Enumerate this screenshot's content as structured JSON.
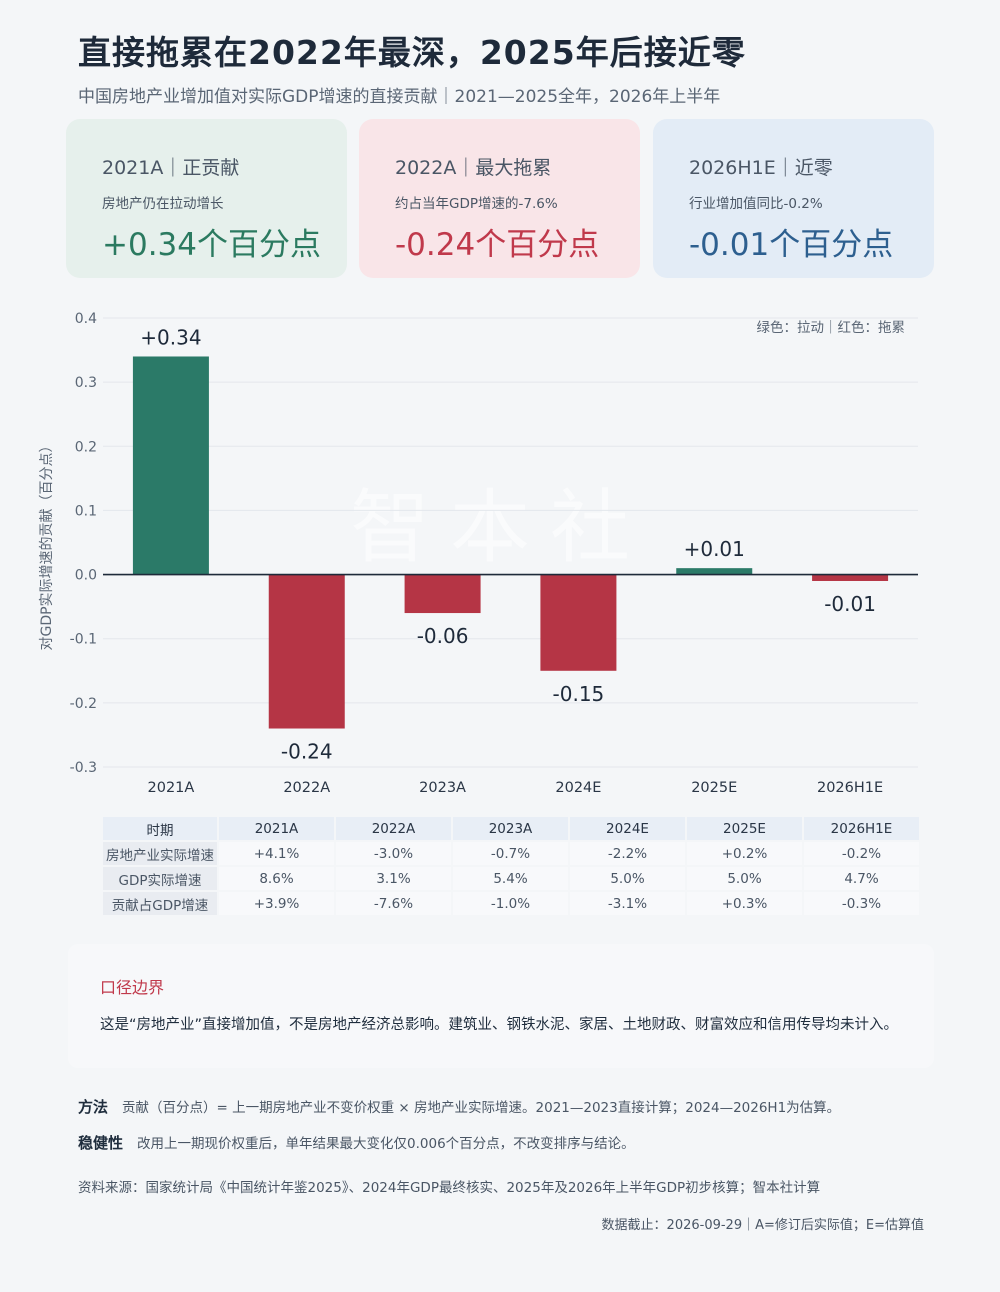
{
  "title": "直接拖累在2022年最深，2025年后接近零",
  "subtitle": "中国房地产业增加值对实际GDP增速的直接贡献｜2021—2025全年，2026年上半年",
  "cards": [
    {
      "head": "2021A｜正贡献",
      "note": "房地产仍在拉动增长",
      "value": "+0.34个百分点"
    },
    {
      "head": "2022A｜最大拖累",
      "note": "约占当年GDP增速的-7.6%",
      "value": "-0.24个百分点"
    },
    {
      "head": "2026H1E｜近零",
      "note": "行业增加值同比-0.2%",
      "value": "-0.01个百分点"
    }
  ],
  "colors": {
    "positive": "#2b7a68",
    "negative": "#b53545",
    "zero_line": "#1e2a3a",
    "grid": "#e3e7ec"
  },
  "chart_data": {
    "type": "bar",
    "title": "",
    "categories": [
      "2021A",
      "2022A",
      "2023A",
      "2024E",
      "2025E",
      "2026H1E"
    ],
    "values": [
      0.34,
      -0.24,
      -0.06,
      -0.15,
      0.01,
      -0.01
    ],
    "data_labels": [
      "+0.34",
      "-0.24",
      "-0.06",
      "-0.15",
      "+0.01",
      "-0.01"
    ],
    "ylabel": "对GDP实际增速的贡献（百分点）",
    "xlabel": "",
    "ylim": [
      -0.3,
      0.4
    ],
    "yticks": [
      "0.4",
      "0.3",
      "0.2",
      "0.1",
      "0.0",
      "-0.1",
      "-0.2",
      "-0.3"
    ],
    "ytick_values": [
      0.4,
      0.3,
      0.2,
      0.1,
      0.0,
      -0.1,
      -0.2,
      -0.3
    ],
    "legend_note": "绿色：拉动｜红色：拖累",
    "legend_position": "top-right",
    "grid": true,
    "watermark": "智本社"
  },
  "table": {
    "header": [
      "时期",
      "2021A",
      "2022A",
      "2023A",
      "2024E",
      "2025E",
      "2026H1E"
    ],
    "rows": [
      [
        "房地产业实际增速",
        "+4.1%",
        "-3.0%",
        "-0.7%",
        "-2.2%",
        "+0.2%",
        "-0.2%"
      ],
      [
        "GDP实际增速",
        "8.6%",
        "3.1%",
        "5.4%",
        "5.0%",
        "5.0%",
        "4.7%"
      ],
      [
        "贡献占GDP增速",
        "+3.9%",
        "-7.6%",
        "-1.0%",
        "-3.1%",
        "+0.3%",
        "-0.3%"
      ]
    ]
  },
  "scope": {
    "title": "口径边界",
    "text": "这是“房地产业”直接增加值，不是房地产经济总影响。建筑业、钢铁水泥、家居、土地财政、财富效应和信用传导均未计入。"
  },
  "method": {
    "label": "方法",
    "text": "贡献（百分点）= 上一期房地产业不变价权重 × 房地产业实际增速。2021—2023直接计算；2024—2026H1为估算。"
  },
  "robust": {
    "label": "稳健性",
    "text": "改用上一期现价权重后，单年结果最大变化仅0.006个百分点，不改变排序与结论。"
  },
  "source": "资料来源：国家统计局《中国统计年鉴2025》、2024年GDP最终核实、2025年及2026年上半年GDP初步核算；智本社计算",
  "cutoff": "数据截止：2026-09-29｜A=修订后实际值；E=估算值"
}
